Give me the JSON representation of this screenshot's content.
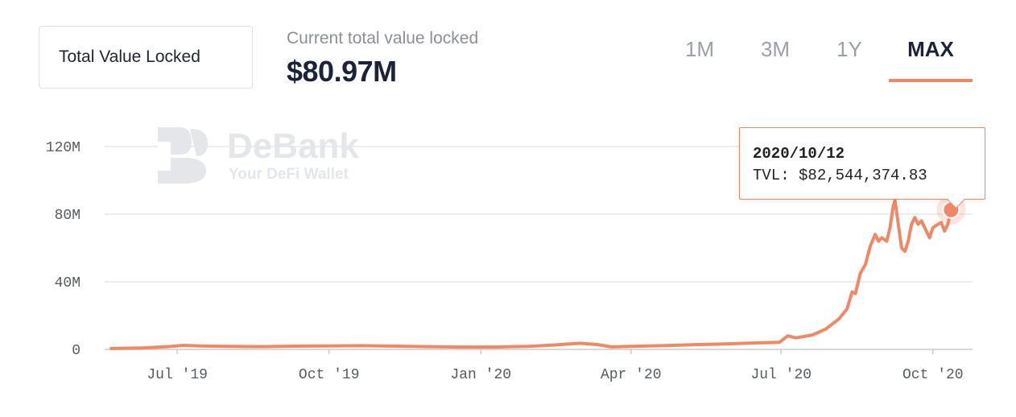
{
  "header": {
    "metric_select": "Total Value Locked",
    "caption": "Current total value locked",
    "value": "$80.97M"
  },
  "range_tabs": [
    {
      "label": "1M",
      "active": false
    },
    {
      "label": "3M",
      "active": false
    },
    {
      "label": "1Y",
      "active": false
    },
    {
      "label": "MAX",
      "active": true
    }
  ],
  "watermark": {
    "title": "DeBank",
    "subtitle": "Your DeFi Wallet"
  },
  "tooltip": {
    "date": "2020/10/12",
    "label": "TVL:",
    "value": "$82,544,374.83"
  },
  "colors": {
    "line": "#f08868",
    "accent": "#f08868",
    "grid": "#e6e7ea"
  },
  "chart_data": {
    "type": "line",
    "title": "",
    "xlabel": "",
    "ylabel": "",
    "ylim": [
      0,
      140
    ],
    "y_unit": "M",
    "yticks": [
      {
        "value": 0,
        "label": "0"
      },
      {
        "value": 40,
        "label": "40M"
      },
      {
        "value": 80,
        "label": "80M"
      },
      {
        "value": 120,
        "label": "120M"
      }
    ],
    "xlim": [
      "2019-05-18",
      "2020-10-25"
    ],
    "xticks": [
      {
        "date": "2019-07-01",
        "label": "Jul '19"
      },
      {
        "date": "2019-10-01",
        "label": "Oct '19"
      },
      {
        "date": "2020-01-01",
        "label": "Jan '20"
      },
      {
        "date": "2020-04-01",
        "label": "Apr '20"
      },
      {
        "date": "2020-07-01",
        "label": "Jul '20"
      },
      {
        "date": "2020-10-01",
        "label": "Oct '20"
      }
    ],
    "grid": true,
    "series": [
      {
        "name": "",
        "points": [
          [
            "2019-05-22",
            0.5
          ],
          [
            "2019-06-10",
            0.8
          ],
          [
            "2019-06-25",
            1.6
          ],
          [
            "2019-07-05",
            2.4
          ],
          [
            "2019-07-15",
            2.0
          ],
          [
            "2019-08-01",
            1.8
          ],
          [
            "2019-08-20",
            1.6
          ],
          [
            "2019-09-10",
            1.9
          ],
          [
            "2019-10-01",
            2.0
          ],
          [
            "2019-10-20",
            2.2
          ],
          [
            "2019-11-10",
            1.9
          ],
          [
            "2019-12-01",
            1.6
          ],
          [
            "2019-12-20",
            1.4
          ],
          [
            "2020-01-10",
            1.4
          ],
          [
            "2020-01-30",
            1.8
          ],
          [
            "2020-02-15",
            2.6
          ],
          [
            "2020-03-01",
            3.6
          ],
          [
            "2020-03-12",
            2.8
          ],
          [
            "2020-03-20",
            1.5
          ],
          [
            "2020-04-01",
            1.8
          ],
          [
            "2020-04-20",
            2.2
          ],
          [
            "2020-05-10",
            2.8
          ],
          [
            "2020-05-30",
            3.3
          ],
          [
            "2020-06-15",
            3.8
          ],
          [
            "2020-06-30",
            4.2
          ],
          [
            "2020-07-05",
            8.0
          ],
          [
            "2020-07-10",
            6.8
          ],
          [
            "2020-07-20",
            8.5
          ],
          [
            "2020-07-28",
            12.0
          ],
          [
            "2020-08-05",
            18.0
          ],
          [
            "2020-08-10",
            24.0
          ],
          [
            "2020-08-13",
            34.0
          ],
          [
            "2020-08-15",
            33.0
          ],
          [
            "2020-08-18",
            45.0
          ],
          [
            "2020-08-21",
            50.0
          ],
          [
            "2020-08-24",
            61.0
          ],
          [
            "2020-08-27",
            68.0
          ],
          [
            "2020-08-29",
            64.0
          ],
          [
            "2020-08-31",
            66.0
          ],
          [
            "2020-09-03",
            64.0
          ],
          [
            "2020-09-05",
            72.0
          ],
          [
            "2020-09-07",
            85.0
          ],
          [
            "2020-09-08",
            88.0
          ],
          [
            "2020-09-10",
            74.0
          ],
          [
            "2020-09-12",
            60.0
          ],
          [
            "2020-09-14",
            58.0
          ],
          [
            "2020-09-16",
            64.0
          ],
          [
            "2020-09-18",
            74.0
          ],
          [
            "2020-09-20",
            78.0
          ],
          [
            "2020-09-22",
            74.0
          ],
          [
            "2020-09-24",
            76.0
          ],
          [
            "2020-09-27",
            70.0
          ],
          [
            "2020-09-29",
            66.0
          ],
          [
            "2020-10-01",
            72.0
          ],
          [
            "2020-10-04",
            74.0
          ],
          [
            "2020-10-06",
            75.0
          ],
          [
            "2020-10-08",
            70.0
          ],
          [
            "2020-10-10",
            74.0
          ],
          [
            "2020-10-12",
            82.5
          ]
        ]
      }
    ],
    "highlight": {
      "date": "2020-10-12",
      "value": 82.5
    }
  }
}
